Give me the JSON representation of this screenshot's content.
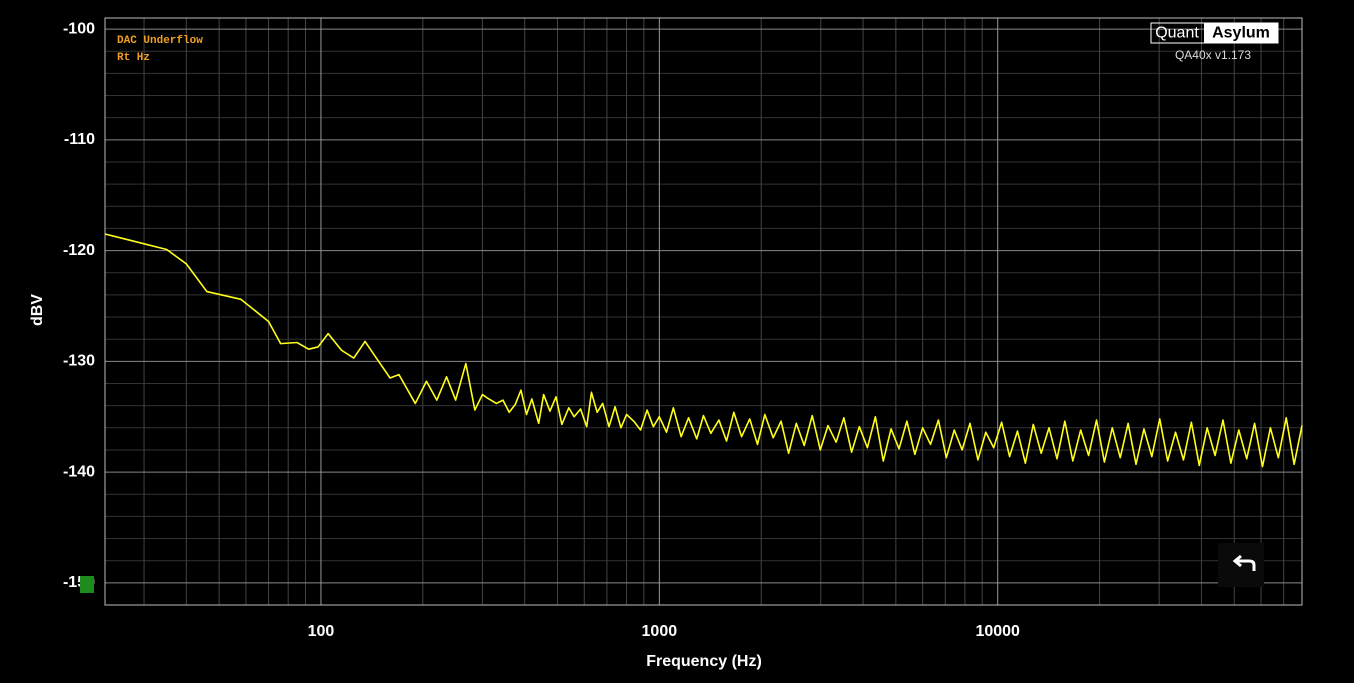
{
  "chart_data": {
    "type": "line",
    "annotations": [
      "DAC Underflow",
      "Rt Hz"
    ],
    "brand": {
      "left": "Quant",
      "right": "Asylum",
      "version": "QA40x v1.173"
    },
    "ylabel": "dBV",
    "xlabel": "Frequency (Hz)",
    "xscale": "log",
    "grid": true,
    "color": "#ffff1a",
    "xlim": [
      23,
      79300
    ],
    "ylim": [
      -152,
      -99
    ],
    "xticks": [
      100,
      1000,
      10000
    ],
    "xminorticks": [
      30,
      40,
      50,
      60,
      70,
      80,
      90,
      200,
      300,
      400,
      500,
      600,
      700,
      800,
      900,
      2000,
      3000,
      4000,
      5000,
      6000,
      7000,
      8000,
      9000,
      20000,
      30000,
      40000,
      50000,
      60000,
      70000
    ],
    "yticks": [
      -100,
      -110,
      -120,
      -130,
      -140,
      -150
    ],
    "yminorticks": [
      -102,
      -104,
      -106,
      -108,
      -112,
      -114,
      -116,
      -118,
      -122,
      -124,
      -126,
      -128,
      -132,
      -134,
      -136,
      -138,
      -142,
      -144,
      -146,
      -148
    ],
    "x": [
      23,
      35,
      40,
      46,
      58,
      70,
      76,
      85,
      92,
      98,
      105,
      115,
      125,
      135,
      145,
      160,
      170,
      190,
      205,
      220,
      235,
      250,
      268,
      285,
      300,
      310,
      330,
      345,
      360,
      375,
      390,
      405,
      420,
      440,
      455,
      475,
      495,
      515,
      540,
      560,
      585,
      610,
      630,
      655,
      680,
      710,
      740,
      770,
      800,
      840,
      880,
      920,
      960,
      1000,
      1050,
      1100,
      1160,
      1220,
      1290,
      1350,
      1420,
      1500,
      1580,
      1660,
      1750,
      1850,
      1950,
      2050,
      2170,
      2290,
      2410,
      2540,
      2680,
      2830,
      2990,
      3150,
      3330,
      3510,
      3700,
      3900,
      4120,
      4350,
      4590,
      4840,
      5110,
      5390,
      5690,
      6000,
      6330,
      6680,
      7050,
      7440,
      7850,
      8280,
      8740,
      9220,
      9730,
      10270,
      10840,
      11440,
      12070,
      12740,
      13440,
      14180,
      14970,
      15790,
      16670,
      17590,
      18560,
      19590,
      20670,
      21810,
      23020,
      24290,
      25630,
      27050,
      28540,
      30120,
      31780,
      33540,
      35390,
      37350,
      39410,
      41590,
      43890,
      46320,
      48880,
      51580,
      54430,
      57440,
      60610,
      63960,
      67500,
      71230,
      75170,
      79300
    ],
    "values": [
      -118.5,
      -119.9,
      -121.2,
      -123.7,
      -124.4,
      -126.4,
      -128.4,
      -128.3,
      -128.9,
      -128.7,
      -127.5,
      -129.0,
      -129.7,
      -128.2,
      -129.6,
      -131.5,
      -131.2,
      -133.8,
      -131.8,
      -133.5,
      -131.4,
      -133.5,
      -130.2,
      -134.4,
      -133.0,
      -133.3,
      -133.8,
      -133.5,
      -134.6,
      -133.9,
      -132.6,
      -134.8,
      -133.4,
      -135.6,
      -133.0,
      -134.5,
      -133.2,
      -135.7,
      -134.2,
      -135.0,
      -134.3,
      -135.9,
      -132.8,
      -134.6,
      -133.8,
      -135.9,
      -134.1,
      -136.0,
      -134.8,
      -135.4,
      -136.2,
      -134.4,
      -135.9,
      -135.0,
      -136.4,
      -134.2,
      -136.8,
      -135.1,
      -137.0,
      -134.9,
      -136.5,
      -135.3,
      -137.2,
      -134.6,
      -136.8,
      -135.2,
      -137.5,
      -134.8,
      -136.9,
      -135.4,
      -138.3,
      -135.6,
      -137.6,
      -134.9,
      -138.0,
      -135.8,
      -137.3,
      -135.1,
      -138.2,
      -135.9,
      -137.8,
      -135.0,
      -139.0,
      -136.1,
      -137.9,
      -135.4,
      -138.4,
      -136.0,
      -137.5,
      -135.3,
      -138.7,
      -136.2,
      -138.0,
      -135.6,
      -138.9,
      -136.4,
      -137.8,
      -135.5,
      -138.6,
      -136.3,
      -139.2,
      -135.7,
      -138.3,
      -136.0,
      -138.8,
      -135.4,
      -139.0,
      -136.2,
      -138.5,
      -135.3,
      -139.1,
      -136.0,
      -138.7,
      -135.6,
      -139.3,
      -136.1,
      -138.6,
      -135.2,
      -139.0,
      -136.4,
      -138.9,
      -135.5,
      -139.4,
      -136.0,
      -138.5,
      -135.3,
      -139.2,
      -136.2,
      -138.8,
      -135.6,
      -139.5,
      -136.0,
      -138.7,
      -135.1,
      -139.3,
      -135.8
    ]
  }
}
